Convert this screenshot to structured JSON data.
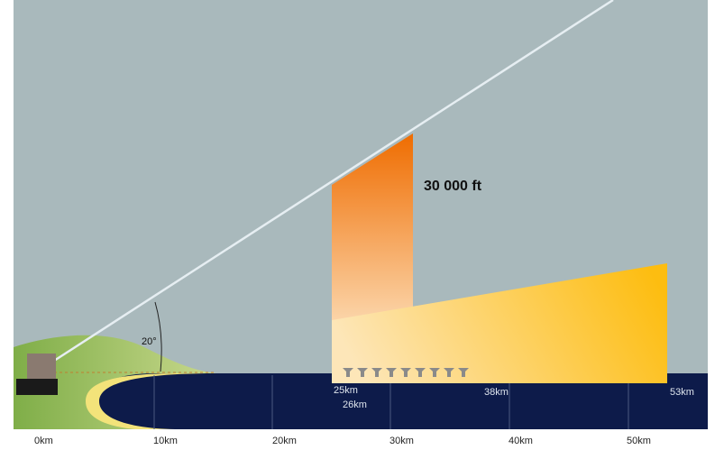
{
  "annotations": {
    "altitude": "30 000 ft",
    "angle": "20°"
  },
  "range_labels": [
    "25km",
    "26km",
    "38km",
    "53km"
  ],
  "axis_labels": [
    "0km",
    "10km",
    "20km",
    "30km",
    "40km",
    "50km"
  ]
}
